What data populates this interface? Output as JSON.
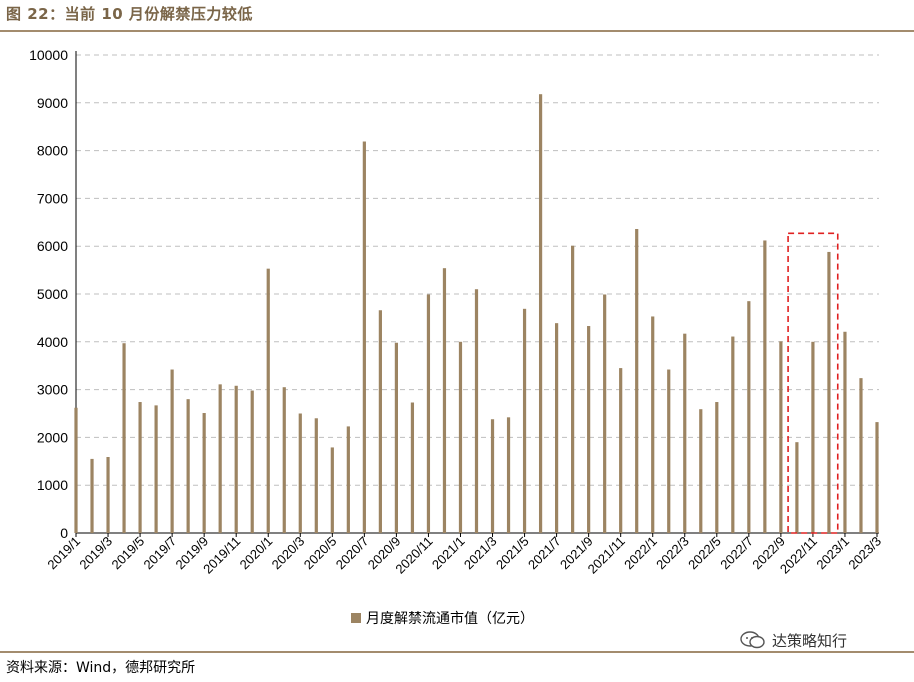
{
  "figure_title": "图 22：当前 10 月份解禁压力较低",
  "source": "资料来源：Wind，德邦研究所",
  "watermark": "达策略知行",
  "colors": {
    "bar": "#9c8462",
    "accent": "#7a6548",
    "highlight_box": "#e02020",
    "grid": "#bfbfbf"
  },
  "chart_data": {
    "type": "bar",
    "ylim": [
      0,
      10000
    ],
    "yticks": [
      0,
      1000,
      2000,
      3000,
      4000,
      5000,
      6000,
      7000,
      8000,
      9000,
      10000
    ],
    "grid": true,
    "legend_position": "bottom",
    "series": [
      {
        "name": "月度解禁流通市值（亿元）",
        "values": [
          2620,
          1550,
          1590,
          3970,
          2740,
          2670,
          3420,
          2800,
          2510,
          3110,
          3080,
          2980,
          5530,
          3050,
          2500,
          2400,
          1790,
          2230,
          8190,
          4660,
          3980,
          2730,
          4990,
          5540,
          4000,
          5100,
          2380,
          2420,
          4690,
          9180,
          4390,
          6010,
          4330,
          4990,
          3450,
          6360,
          4530,
          3420,
          4170,
          2590,
          2740,
          4110,
          4850,
          6120,
          4010,
          1900,
          4000,
          5880,
          4210,
          3240,
          2320
        ]
      }
    ],
    "categories": [
      "2019/1",
      "2019/2",
      "2019/3",
      "2019/4",
      "2019/5",
      "2019/6",
      "2019/7",
      "2019/8",
      "2019/9",
      "2019/10",
      "2019/11",
      "2019/12",
      "2020/1",
      "2020/2",
      "2020/3",
      "2020/4",
      "2020/5",
      "2020/6",
      "2020/7",
      "2020/8",
      "2020/9",
      "2020/10",
      "2020/11",
      "2020/12",
      "2021/1",
      "2021/2",
      "2021/3",
      "2021/4",
      "2021/5",
      "2021/6",
      "2021/7",
      "2021/8",
      "2021/9",
      "2021/10",
      "2021/11",
      "2021/12",
      "2022/1",
      "2022/2",
      "2022/3",
      "2022/4",
      "2022/5",
      "2022/6",
      "2022/7",
      "2022/8",
      "2022/9",
      "2022/10",
      "2022/11",
      "2022/12",
      "2023/1",
      "2023/2",
      "2023/3"
    ],
    "xtick_labels": [
      "2019/1",
      "2019/3",
      "2019/5",
      "2019/7",
      "2019/9",
      "2019/11",
      "2020/1",
      "2020/3",
      "2020/5",
      "2020/7",
      "2020/9",
      "2020/11",
      "2021/1",
      "2021/3",
      "2021/5",
      "2021/7",
      "2021/9",
      "2021/11",
      "2022/1",
      "2022/3",
      "2022/5",
      "2022/7",
      "2022/9",
      "2022/11",
      "2023/1",
      "2023/3"
    ],
    "highlight_categories": [
      "2022/10",
      "2022/12"
    ]
  }
}
